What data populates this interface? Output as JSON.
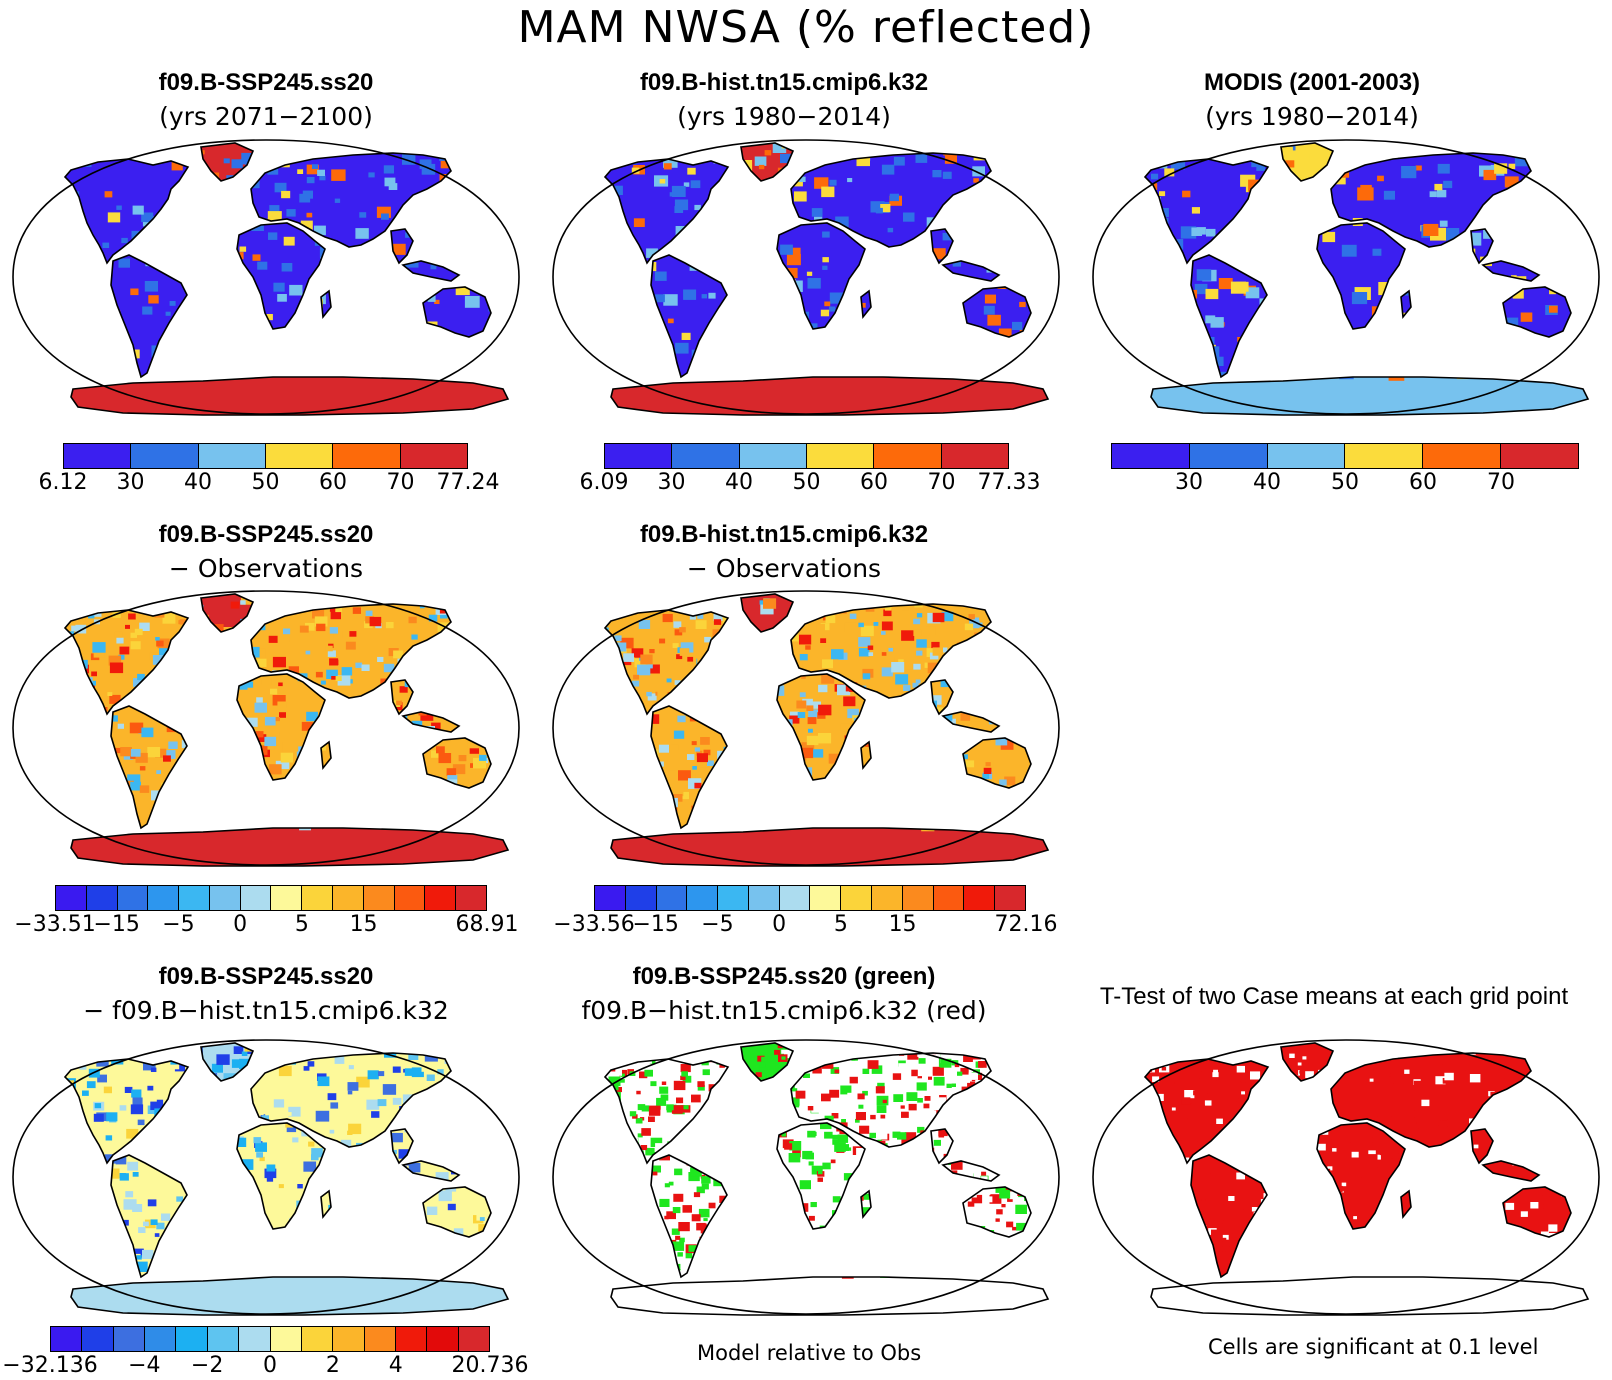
{
  "title": "MAM NWSA (% reflected)",
  "panels": {
    "p1": {
      "line1": "f09.B-SSP245.ss20",
      "line2": "(yrs 2071−2100)"
    },
    "p2": {
      "line1": "f09.B-hist.tn15.cmip6.k32",
      "line2": "(yrs 1980−2014)"
    },
    "p3": {
      "line1": "MODIS (2001-2003)",
      "line2": "(yrs 1980−2014)"
    },
    "p4": {
      "line1": "f09.B-SSP245.ss20",
      "line2": "− Observations"
    },
    "p5": {
      "line1": "f09.B-hist.tn15.cmip6.k32",
      "line2": "− Observations"
    },
    "p7": {
      "line1": "f09.B-SSP245.ss20",
      "line2": "− f09.B−hist.tn15.cmip6.k32"
    },
    "p8": {
      "line1": "f09.B-SSP245.ss20 (green)",
      "line2": "f09.B−hist.tn15.cmip6.k32 (red)"
    },
    "p9": {
      "line1": "T-Test of two Case means at each grid point"
    }
  },
  "colorbars": {
    "cb1": {
      "labels": [
        "6.12",
        "30",
        "40",
        "50",
        "60",
        "70",
        "77.24"
      ]
    },
    "cb2": {
      "labels": [
        "6.09",
        "30",
        "40",
        "50",
        "60",
        "70",
        "77.33"
      ]
    },
    "cb3": {
      "labels": [
        "30",
        "40",
        "50",
        "60",
        "70"
      ]
    },
    "cb4": {
      "labels": [
        "−33.51",
        "−15",
        "−5",
        "0",
        "5",
        "15",
        "68.91"
      ]
    },
    "cb5": {
      "labels": [
        "−33.56",
        "−15",
        "−5",
        "0",
        "5",
        "15",
        "72.16"
      ]
    },
    "cb7": {
      "labels": [
        "−32.136",
        "−4",
        "−2",
        "0",
        "2",
        "4",
        "20.736"
      ]
    }
  },
  "notes": {
    "model_relative": "Model relative to Obs",
    "significance": "Cells are significant at 0.1 level"
  },
  "colors": {
    "abs_scale": [
      "#3b1ff0",
      "#2f72e6",
      "#77c2ee",
      "#fbdc3c",
      "#fd6a0a",
      "#d8282c"
    ],
    "diff_scale": [
      "#3a1af0",
      "#1f3fe8",
      "#2f72e6",
      "#2d96ee",
      "#3bb7f2",
      "#77c2ee",
      "#acdcef",
      "#fdf99a",
      "#fbd43a",
      "#fbb52a",
      "#fb8a1e",
      "#fb5a10",
      "#f01a0a",
      "#d8282c"
    ],
    "t_scale": [
      "#3a1af0",
      "#1f3fe8",
      "#3d6fe0",
      "#2f8ce8",
      "#1cb0f2",
      "#5ec4f0",
      "#acdcef",
      "#fdf99a",
      "#fbd43a",
      "#fbb52a",
      "#fb8a1e",
      "#f01a0a",
      "#e20a0a",
      "#d8282c"
    ],
    "green": "#1fe61f",
    "red": "#e81212"
  }
}
